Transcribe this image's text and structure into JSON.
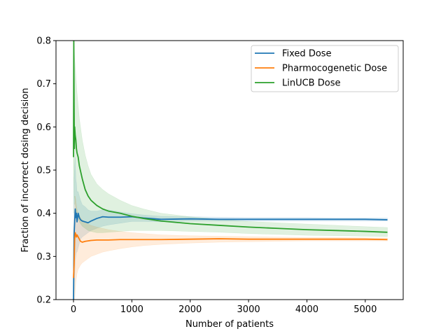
{
  "chart_data": {
    "type": "line",
    "title": "",
    "xlabel": "Number of patients",
    "ylabel": "Fraction of incorrect dosing decision",
    "xlim": [
      -300,
      5650
    ],
    "ylim": [
      0.2,
      0.8
    ],
    "x_ticks": [
      0,
      1000,
      2000,
      3000,
      4000,
      5000
    ],
    "y_ticks": [
      0.2,
      0.3,
      0.4,
      0.5,
      0.6,
      0.7,
      0.8
    ],
    "grid": false,
    "legend_position": "top-right",
    "series": [
      {
        "name": "Fixed Dose",
        "color": "#1f77b4",
        "x": [
          0,
          10,
          20,
          30,
          40,
          50,
          60,
          80,
          100,
          120,
          150,
          200,
          250,
          300,
          400,
          500,
          600,
          800,
          1000,
          1200,
          1500,
          2000,
          2500,
          3000,
          3500,
          4000,
          4500,
          5000,
          5380
        ],
        "y": [
          0.2,
          0.35,
          0.38,
          0.41,
          0.39,
          0.4,
          0.38,
          0.4,
          0.39,
          0.385,
          0.382,
          0.38,
          0.378,
          0.382,
          0.388,
          0.392,
          0.391,
          0.391,
          0.392,
          0.389,
          0.386,
          0.387,
          0.386,
          0.386,
          0.386,
          0.386,
          0.386,
          0.386,
          0.385
        ],
        "lower": [
          0.2,
          0.2,
          0.25,
          0.29,
          0.3,
          0.31,
          0.31,
          0.32,
          0.33,
          0.34,
          0.345,
          0.35,
          0.355,
          0.36,
          0.365,
          0.37,
          0.373,
          0.377,
          0.381,
          0.381,
          0.38,
          0.382,
          0.382,
          0.382,
          0.382,
          0.382,
          0.382,
          0.382,
          0.382
        ],
        "upper": [
          0.3,
          0.48,
          0.51,
          0.53,
          0.48,
          0.47,
          0.45,
          0.45,
          0.44,
          0.43,
          0.42,
          0.415,
          0.408,
          0.405,
          0.405,
          0.408,
          0.408,
          0.403,
          0.399,
          0.396,
          0.393,
          0.392,
          0.391,
          0.39,
          0.39,
          0.39,
          0.389,
          0.389,
          0.389
        ]
      },
      {
        "name": "Pharmocogenetic Dose",
        "color": "#ff7f0e",
        "x": [
          0,
          10,
          20,
          30,
          40,
          50,
          60,
          80,
          100,
          120,
          150,
          200,
          250,
          300,
          400,
          500,
          600,
          800,
          1000,
          1200,
          1500,
          2000,
          2500,
          3000,
          3500,
          4000,
          4500,
          5000,
          5380
        ],
        "y": [
          0.25,
          0.28,
          0.34,
          0.355,
          0.35,
          0.345,
          0.35,
          0.345,
          0.34,
          0.335,
          0.333,
          0.335,
          0.336,
          0.337,
          0.338,
          0.338,
          0.338,
          0.339,
          0.339,
          0.339,
          0.339,
          0.34,
          0.341,
          0.34,
          0.34,
          0.34,
          0.34,
          0.34,
          0.339
        ],
        "lower": [
          0.2,
          0.2,
          0.2,
          0.22,
          0.24,
          0.25,
          0.26,
          0.27,
          0.275,
          0.28,
          0.285,
          0.29,
          0.295,
          0.3,
          0.305,
          0.31,
          0.313,
          0.318,
          0.322,
          0.325,
          0.328,
          0.331,
          0.333,
          0.334,
          0.335,
          0.336,
          0.336,
          0.336,
          0.336
        ],
        "upper": [
          0.36,
          0.38,
          0.42,
          0.44,
          0.43,
          0.42,
          0.41,
          0.4,
          0.395,
          0.39,
          0.385,
          0.38,
          0.375,
          0.372,
          0.368,
          0.365,
          0.362,
          0.358,
          0.355,
          0.353,
          0.35,
          0.348,
          0.347,
          0.346,
          0.345,
          0.344,
          0.344,
          0.343,
          0.343
        ]
      },
      {
        "name": "LinUCB Dose",
        "color": "#2ca02c",
        "x": [
          0,
          5,
          10,
          15,
          20,
          30,
          40,
          50,
          60,
          80,
          100,
          150,
          200,
          250,
          300,
          400,
          500,
          600,
          800,
          1000,
          1200,
          1500,
          2000,
          2500,
          3000,
          3500,
          4000,
          4500,
          5000,
          5380
        ],
        "y": [
          0.53,
          0.8,
          0.65,
          0.55,
          0.6,
          0.58,
          0.57,
          0.55,
          0.54,
          0.53,
          0.51,
          0.48,
          0.455,
          0.44,
          0.43,
          0.418,
          0.41,
          0.405,
          0.4,
          0.393,
          0.388,
          0.382,
          0.376,
          0.372,
          0.368,
          0.365,
          0.362,
          0.36,
          0.358,
          0.356
        ],
        "lower": [
          0.4,
          0.55,
          0.48,
          0.42,
          0.44,
          0.42,
          0.41,
          0.4,
          0.395,
          0.39,
          0.38,
          0.37,
          0.365,
          0.36,
          0.358,
          0.355,
          0.355,
          0.356,
          0.358,
          0.36,
          0.36,
          0.36,
          0.358,
          0.356,
          0.353,
          0.351,
          0.349,
          0.348,
          0.347,
          0.346
        ],
        "upper": [
          0.7,
          0.8,
          0.8,
          0.78,
          0.76,
          0.74,
          0.72,
          0.7,
          0.68,
          0.65,
          0.62,
          0.57,
          0.535,
          0.51,
          0.49,
          0.468,
          0.455,
          0.445,
          0.43,
          0.418,
          0.41,
          0.4,
          0.392,
          0.386,
          0.381,
          0.378,
          0.375,
          0.372,
          0.369,
          0.367
        ]
      }
    ]
  }
}
